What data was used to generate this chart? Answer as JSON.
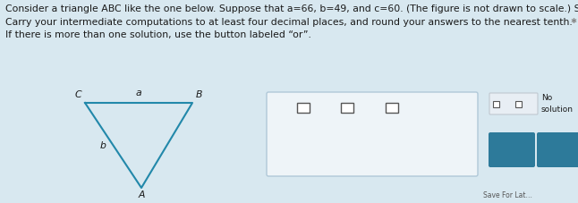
{
  "title_line1": "Consider a triangle ABC like the one below. Suppose that a=66, b=49, and c=60. (The figure is not drawn to scale.) Solve the triangle.",
  "title_line2": "Carry your intermediate computations to at least four decimal places, and round your answers to the nearest tenth.",
  "title_line3": "If there is more than one solution, use the button labeled “or”.",
  "bg_color": "#d8e8f0",
  "triangle_color": "#2288aa",
  "font_color_dark": "#1a1a1a",
  "font_color_light": "#ffffff",
  "button_color": "#2d7a9a",
  "or_bg": "#e0e8ee",
  "no_sol_bg": "#e8eef2",
  "input_box_bg": "#edf4f8",
  "text_font_size": 7.8,
  "small_font": 7.0
}
